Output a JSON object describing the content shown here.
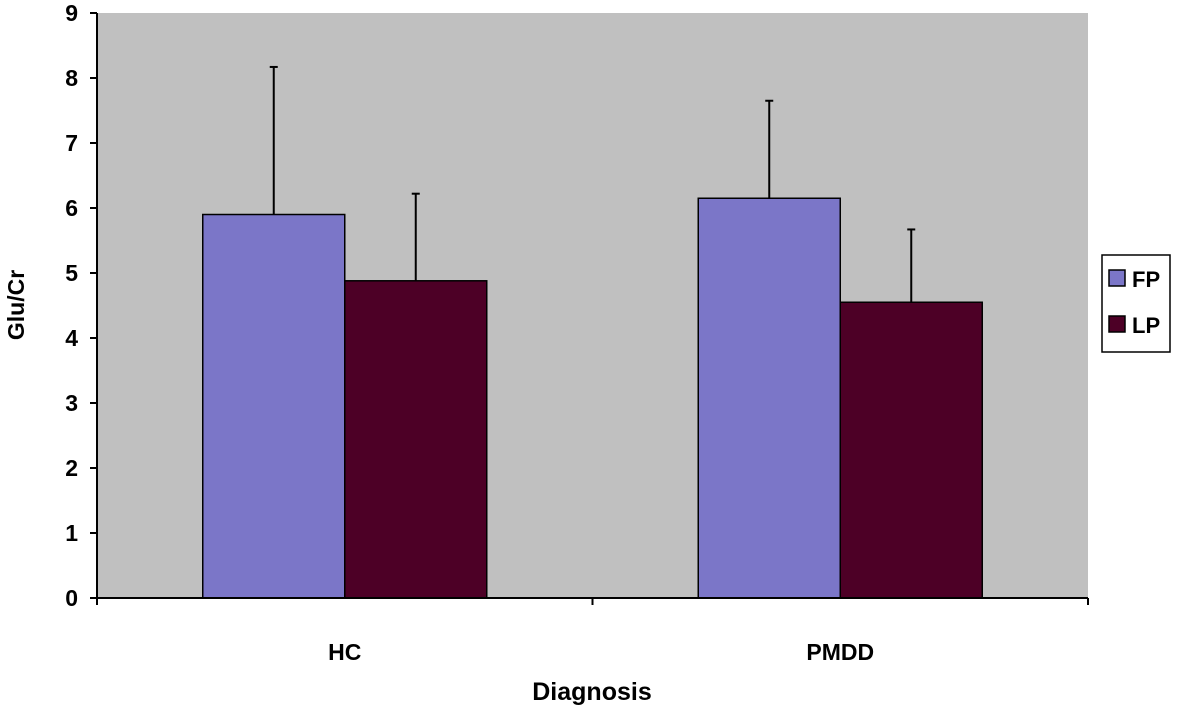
{
  "chart_data": {
    "type": "bar",
    "title": "",
    "xlabel": "Diagnosis",
    "ylabel": "Glu/Cr",
    "ylim": [
      0,
      9
    ],
    "yticks": [
      0,
      1,
      2,
      3,
      4,
      5,
      6,
      7,
      8,
      9
    ],
    "categories": [
      "HC",
      "PMDD"
    ],
    "series": [
      {
        "name": "FP",
        "color": "#7b76c8",
        "values": [
          5.9,
          6.15
        ],
        "error_upper": [
          8.17,
          7.65
        ]
      },
      {
        "name": "LP",
        "color": "#4d0026",
        "values": [
          4.88,
          4.55
        ],
        "error_upper": [
          6.22,
          5.67
        ]
      }
    ],
    "grid": false,
    "background": "#c0c0c0",
    "legend_position": "right"
  }
}
